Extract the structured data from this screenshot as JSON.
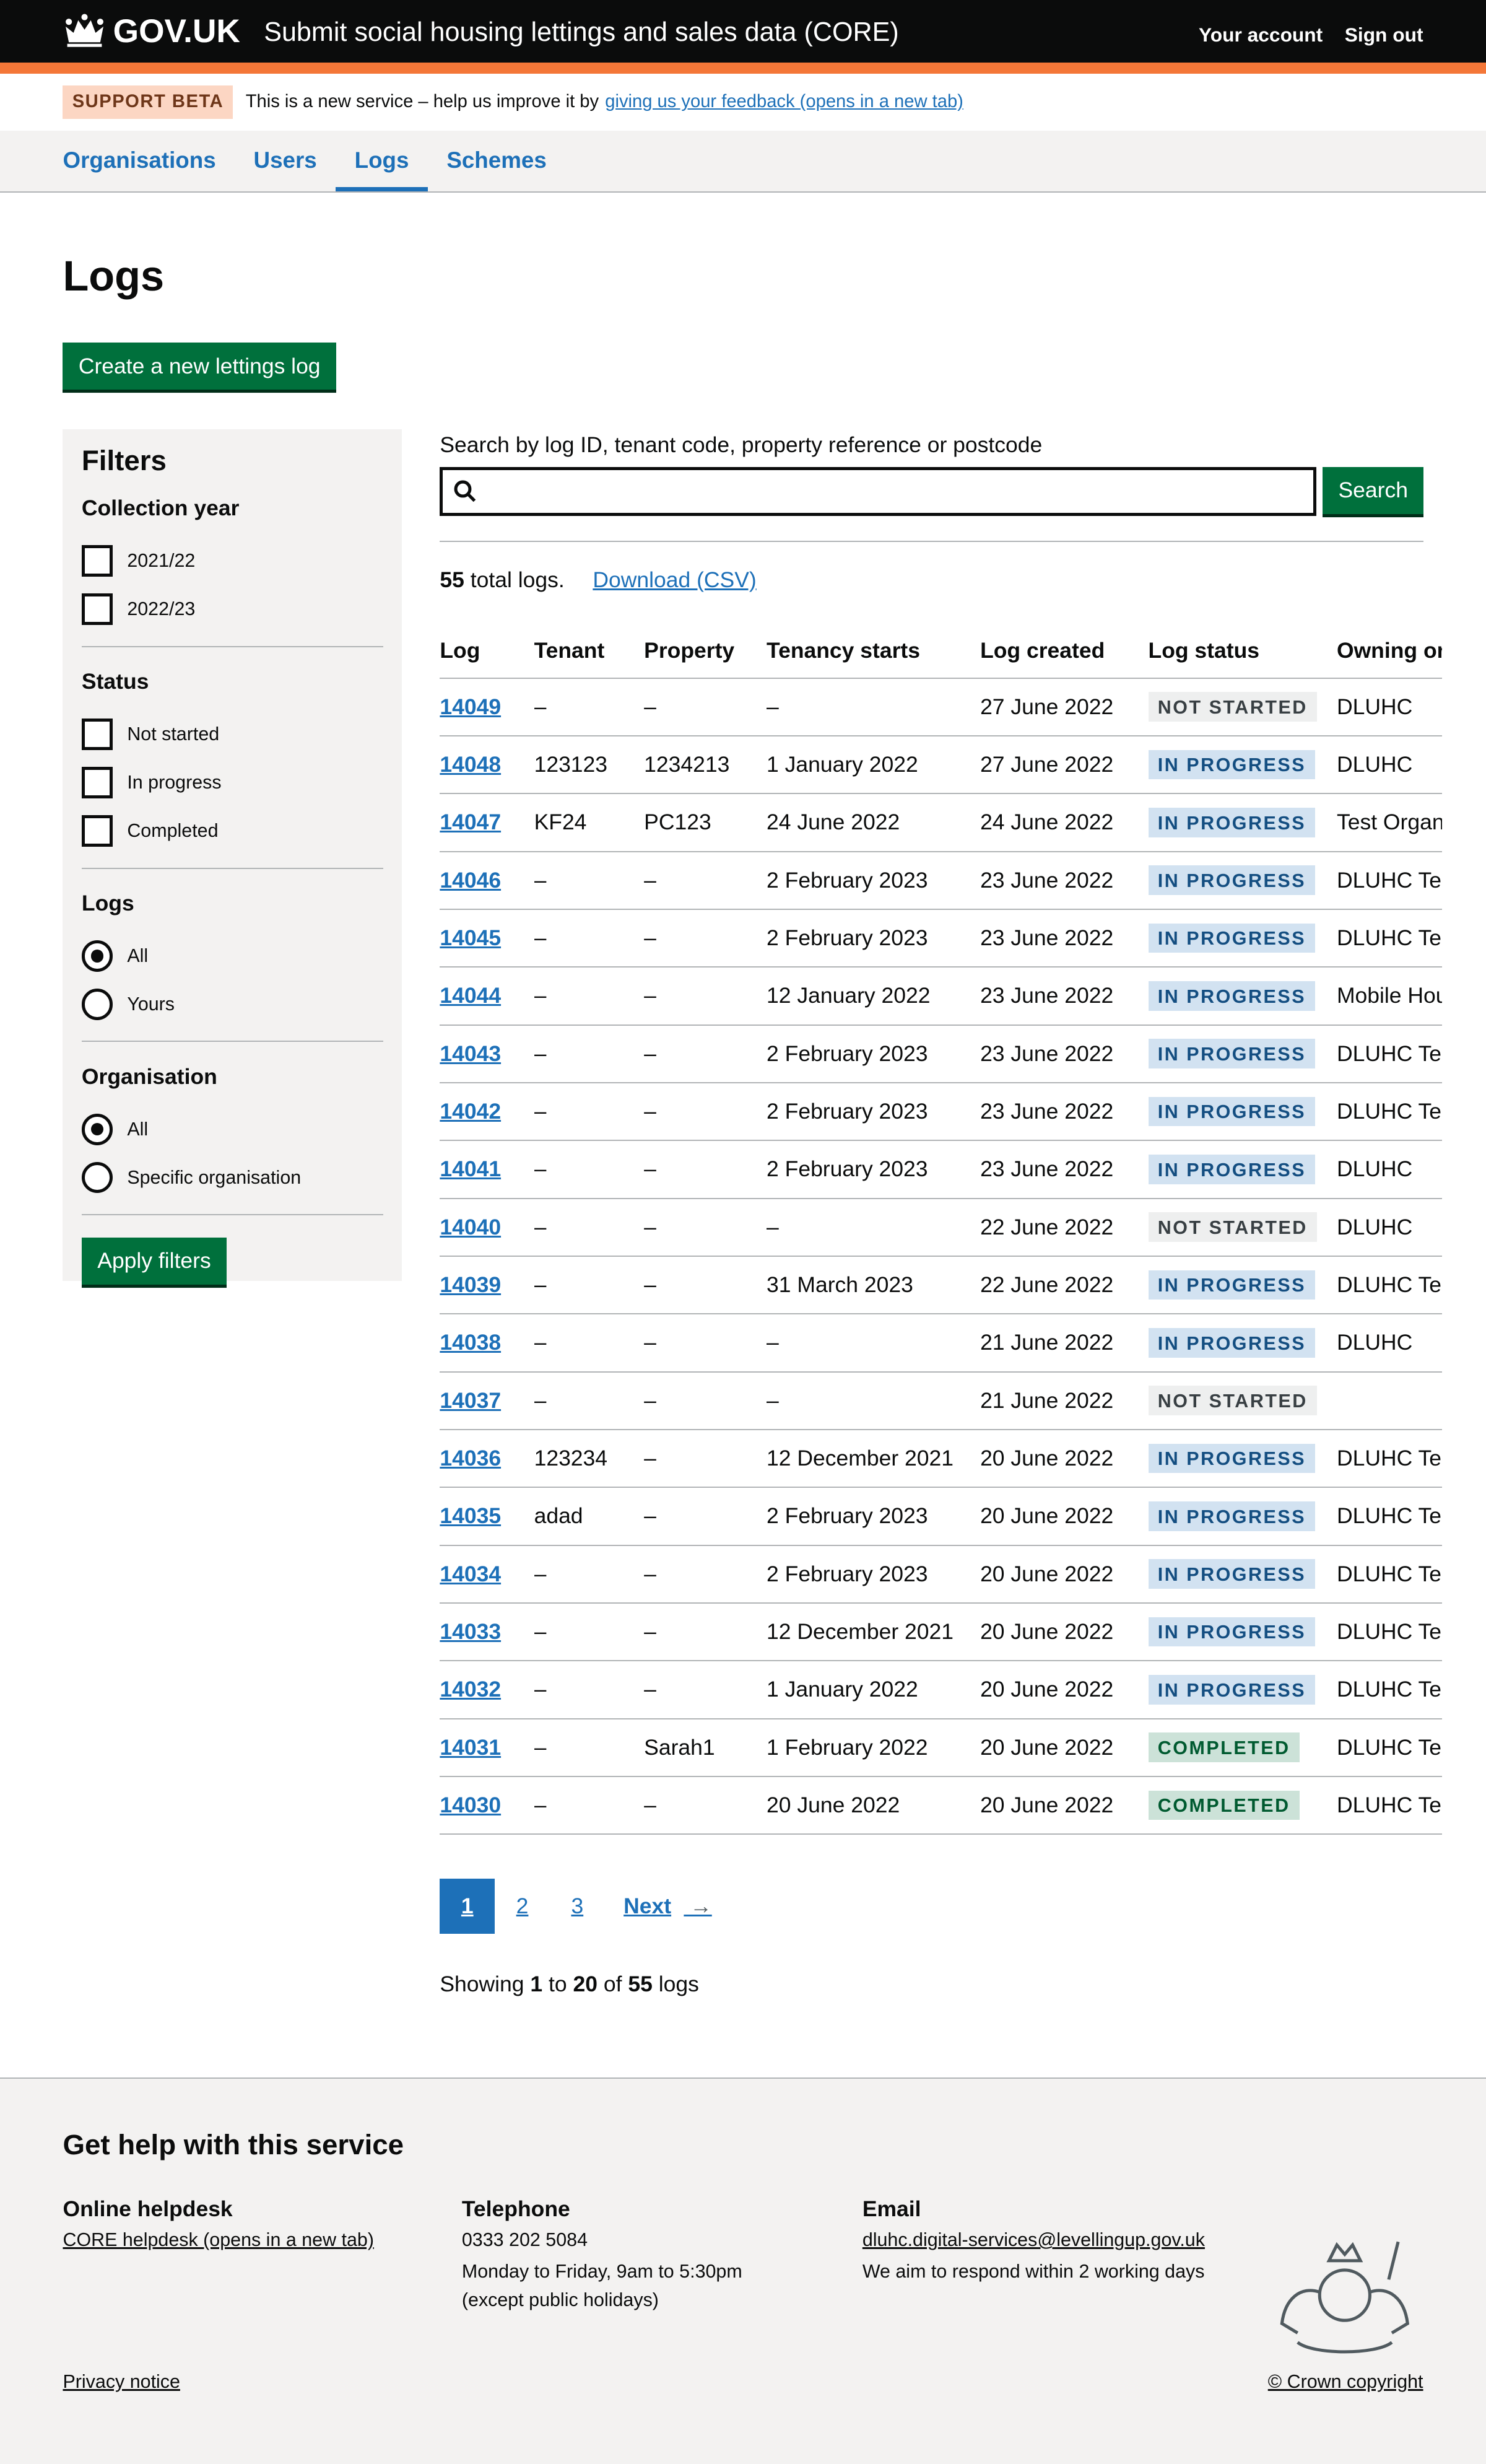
{
  "header": {
    "logo": "GOV.UK",
    "service": "Submit social housing lettings and sales data (CORE)",
    "your_account": "Your account",
    "sign_out": "Sign out"
  },
  "banner": {
    "tag": "SUPPORT BETA",
    "text": "This is a new service – help us improve it by",
    "link": "giving us your feedback (opens in a new tab)"
  },
  "nav": [
    {
      "label": "Organisations"
    },
    {
      "label": "Users"
    },
    {
      "label": "Logs",
      "active": true
    },
    {
      "label": "Schemes"
    }
  ],
  "page": {
    "title": "Logs",
    "create_button": "Create a new lettings log"
  },
  "filters": {
    "title": "Filters",
    "apply": "Apply filters",
    "collection_year": {
      "label": "Collection year",
      "options": [
        "2021/22",
        "2022/23"
      ]
    },
    "status": {
      "label": "Status",
      "options": [
        "Not started",
        "In progress",
        "Completed"
      ]
    },
    "logs": {
      "label": "Logs",
      "options": [
        "All",
        "Yours"
      ],
      "selected": "All"
    },
    "organisation": {
      "label": "Organisation",
      "options": [
        "All",
        "Specific organisation"
      ],
      "selected": "All"
    }
  },
  "search": {
    "label": "Search by log ID, tenant code, property reference or postcode",
    "value": "",
    "button": "Search"
  },
  "summary": {
    "count": "55",
    "count_suffix": "total logs.",
    "download": "Download (CSV)"
  },
  "table": {
    "headers": [
      "Log",
      "Tenant",
      "Property",
      "Tenancy starts",
      "Log created",
      "Log status",
      "Owning or"
    ],
    "rows": [
      [
        "14049",
        "–",
        "–",
        "–",
        "27 June 2022",
        "NOT STARTED",
        "DLUHC"
      ],
      [
        "14048",
        "123123",
        "1234213",
        "1 January 2022",
        "27 June 2022",
        "IN PROGRESS",
        "DLUHC"
      ],
      [
        "14047",
        "KF24",
        "PC123",
        "24 June 2022",
        "24 June 2022",
        "IN PROGRESS",
        "Test Organ"
      ],
      [
        "14046",
        "–",
        "–",
        "2 February 2023",
        "23 June 2022",
        "IN PROGRESS",
        "DLUHC Tes"
      ],
      [
        "14045",
        "–",
        "–",
        "2 February 2023",
        "23 June 2022",
        "IN PROGRESS",
        "DLUHC Tes"
      ],
      [
        "14044",
        "–",
        "–",
        "12 January 2022",
        "23 June 2022",
        "IN PROGRESS",
        "Mobile Hou"
      ],
      [
        "14043",
        "–",
        "–",
        "2 February 2023",
        "23 June 2022",
        "IN PROGRESS",
        "DLUHC Tes"
      ],
      [
        "14042",
        "–",
        "–",
        "2 February 2023",
        "23 June 2022",
        "IN PROGRESS",
        "DLUHC Tes"
      ],
      [
        "14041",
        "–",
        "–",
        "2 February 2023",
        "23 June 2022",
        "IN PROGRESS",
        "DLUHC"
      ],
      [
        "14040",
        "–",
        "–",
        "–",
        "22 June 2022",
        "NOT STARTED",
        "DLUHC"
      ],
      [
        "14039",
        "–",
        "–",
        "31 March 2023",
        "22 June 2022",
        "IN PROGRESS",
        "DLUHC Tes"
      ],
      [
        "14038",
        "–",
        "–",
        "–",
        "21 June 2022",
        "IN PROGRESS",
        "DLUHC"
      ],
      [
        "14037",
        "–",
        "–",
        "–",
        "21 June 2022",
        "NOT STARTED",
        ""
      ],
      [
        "14036",
        "123234",
        "–",
        "12 December 2021",
        "20 June 2022",
        "IN PROGRESS",
        "DLUHC Tes"
      ],
      [
        "14035",
        "adad",
        "–",
        "2 February 2023",
        "20 June 2022",
        "IN PROGRESS",
        "DLUHC Tes"
      ],
      [
        "14034",
        "–",
        "–",
        "2 February 2023",
        "20 June 2022",
        "IN PROGRESS",
        "DLUHC Tes"
      ],
      [
        "14033",
        "–",
        "–",
        "12 December 2021",
        "20 June 2022",
        "IN PROGRESS",
        "DLUHC Tes"
      ],
      [
        "14032",
        "–",
        "–",
        "1 January 2022",
        "20 June 2022",
        "IN PROGRESS",
        "DLUHC Tes"
      ],
      [
        "14031",
        "–",
        "Sarah1",
        "1 February 2022",
        "20 June 2022",
        "COMPLETED",
        "DLUHC Tes"
      ],
      [
        "14030",
        "–",
        "–",
        "20 June 2022",
        "20 June 2022",
        "COMPLETED",
        "DLUHC Tes"
      ]
    ]
  },
  "pagination": {
    "pages": [
      "1",
      "2",
      "3"
    ],
    "current": "1",
    "next": "Next"
  },
  "showing": {
    "prefix": "Showing",
    "from": "1",
    "to_word": "to",
    "to": "20",
    "of_word": "of",
    "total": "55",
    "suffix": "logs"
  },
  "footer": {
    "title": "Get help with this service",
    "helpdesk": {
      "title": "Online helpdesk",
      "link": "CORE helpdesk (opens in a new tab)"
    },
    "telephone": {
      "title": "Telephone",
      "number": "0333 202 5084",
      "hours": "Monday to Friday, 9am to 5:30pm",
      "note": "(except public holidays)"
    },
    "email": {
      "title": "Email",
      "address": "dluhc.digital-services@levellingup.gov.uk",
      "note": "We aim to respond within 2 working days"
    },
    "privacy": "Privacy notice",
    "copyright": "© Crown copyright"
  },
  "colors": {
    "header": "#0b0c0c",
    "accent": "#f47738",
    "link": "#1d70b8",
    "button": "#00703c"
  }
}
